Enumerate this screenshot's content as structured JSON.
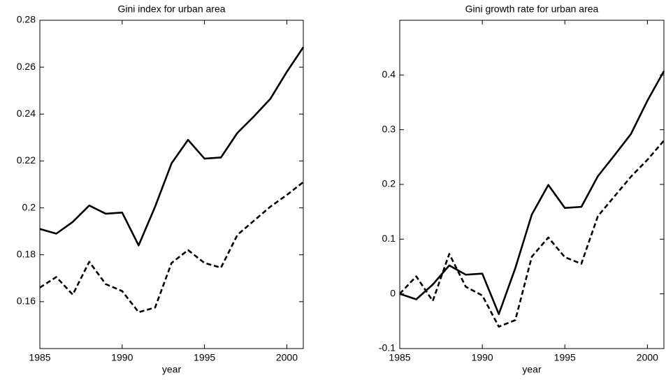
{
  "chart_data": [
    {
      "type": "line",
      "title": "Gini index for urban area",
      "xlabel": "year",
      "x": [
        1985,
        1986,
        1987,
        1988,
        1989,
        1990,
        1991,
        1992,
        1993,
        1994,
        1995,
        1996,
        1997,
        1998,
        1999,
        2000,
        2001
      ],
      "series": [
        {
          "color": "#000000",
          "dashed": false,
          "values": [
            0.191,
            0.189,
            0.194,
            0.201,
            0.1975,
            0.198,
            0.184,
            0.2005,
            0.219,
            0.229,
            0.221,
            0.2215,
            0.232,
            0.239,
            0.2465,
            0.258,
            0.2685
          ]
        },
        {
          "color": "#000000",
          "dashed": true,
          "values": [
            0.166,
            0.1705,
            0.163,
            0.177,
            0.1675,
            0.1645,
            0.1555,
            0.1575,
            0.1765,
            0.182,
            0.1765,
            0.1745,
            0.1885,
            0.1945,
            0.2005,
            0.2055,
            0.211
          ]
        }
      ],
      "xlim": [
        1985,
        2001
      ],
      "xticks": [
        1985,
        1990,
        1995,
        2000
      ],
      "ylim": [
        0.14,
        0.28
      ],
      "yticks": [
        0.16,
        0.18,
        0.2,
        0.22,
        0.24,
        0.26,
        0.28
      ],
      "grid": false
    },
    {
      "type": "line",
      "title": "Gini growth rate for urban area",
      "xlabel": "year",
      "x": [
        1985,
        1986,
        1987,
        1988,
        1989,
        1990,
        1991,
        1992,
        1993,
        1994,
        1995,
        1996,
        1997,
        1998,
        1999,
        2000,
        2001
      ],
      "series": [
        {
          "color": "#000000",
          "dashed": false,
          "values": [
            0,
            -0.01,
            0.017,
            0.052,
            0.035,
            0.037,
            -0.037,
            0.047,
            0.145,
            0.199,
            0.157,
            0.159,
            0.215,
            0.253,
            0.292,
            0.353,
            0.407
          ]
        },
        {
          "color": "#000000",
          "dashed": true,
          "values": [
            0,
            0.032,
            -0.013,
            0.073,
            0.013,
            -0.003,
            -0.06,
            -0.048,
            0.068,
            0.103,
            0.067,
            0.055,
            0.142,
            0.178,
            0.214,
            0.245,
            0.28
          ]
        }
      ],
      "xlim": [
        1985,
        2001
      ],
      "xticks": [
        1985,
        1990,
        1995,
        2000
      ],
      "ylim": [
        -0.1,
        0.5
      ],
      "yticks": [
        -0.1,
        0,
        0.1,
        0.2,
        0.3,
        0.4
      ],
      "grid": false
    }
  ]
}
